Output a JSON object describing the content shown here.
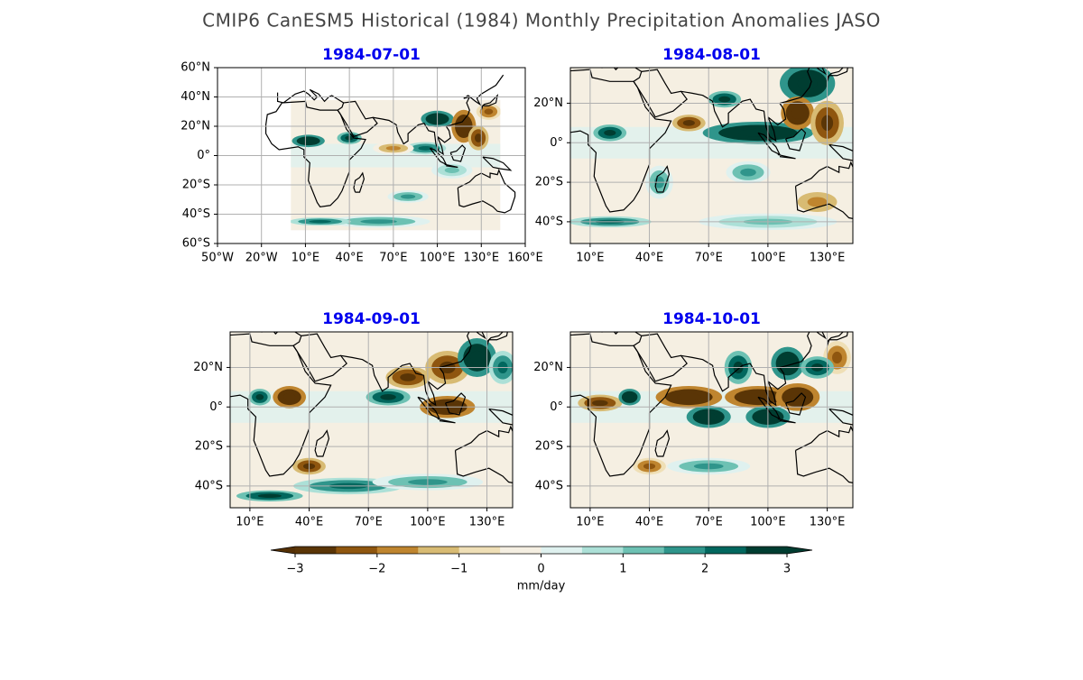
{
  "title": "CMIP6 CanESM5 Historical (1984) Monthly Precipitation Anomalies JASO",
  "panels": [
    {
      "title": "1984-07-01",
      "lonlim": [
        -50,
        160
      ],
      "latlim": [
        -60,
        60
      ],
      "data_lonlim": [
        0,
        143
      ],
      "data_latlim": [
        -51,
        38
      ],
      "xticks": [
        {
          "value": -50,
          "label": "50°W"
        },
        {
          "value": -20,
          "label": "20°W"
        },
        {
          "value": 10,
          "label": "10°E"
        },
        {
          "value": 40,
          "label": "40°E"
        },
        {
          "value": 70,
          "label": "70°E"
        },
        {
          "value": 100,
          "label": "100°E"
        },
        {
          "value": 130,
          "label": "130°E"
        },
        {
          "value": 160,
          "label": "160°E"
        }
      ],
      "yticks": [
        {
          "value": 60,
          "label": "60°N"
        },
        {
          "value": 40,
          "label": "40°N"
        },
        {
          "value": 20,
          "label": "20°N"
        },
        {
          "value": 0,
          "label": "0°"
        },
        {
          "value": -20,
          "label": "20°S"
        },
        {
          "value": -40,
          "label": "40°S"
        },
        {
          "value": -60,
          "label": "60°S"
        }
      ]
    },
    {
      "title": "1984-08-01",
      "lonlim": [
        0,
        143
      ],
      "latlim": [
        -51,
        38
      ],
      "data_lonlim": [
        0,
        143
      ],
      "data_latlim": [
        -51,
        38
      ],
      "xticks": [
        {
          "value": 10,
          "label": "10°E"
        },
        {
          "value": 40,
          "label": "40°E"
        },
        {
          "value": 70,
          "label": "70°E"
        },
        {
          "value": 100,
          "label": "100°E"
        },
        {
          "value": 130,
          "label": "130°E"
        }
      ],
      "yticks": [
        {
          "value": 20,
          "label": "20°N"
        },
        {
          "value": 0,
          "label": "0°"
        },
        {
          "value": -20,
          "label": "20°S"
        },
        {
          "value": -40,
          "label": "40°S"
        }
      ]
    },
    {
      "title": "1984-09-01",
      "lonlim": [
        0,
        143
      ],
      "latlim": [
        -51,
        38
      ],
      "data_lonlim": [
        0,
        143
      ],
      "data_latlim": [
        -51,
        38
      ],
      "xticks": [
        {
          "value": 10,
          "label": "10°E"
        },
        {
          "value": 40,
          "label": "40°E"
        },
        {
          "value": 70,
          "label": "70°E"
        },
        {
          "value": 100,
          "label": "100°E"
        },
        {
          "value": 130,
          "label": "130°E"
        }
      ],
      "yticks": [
        {
          "value": 20,
          "label": "20°N"
        },
        {
          "value": 0,
          "label": "0°"
        },
        {
          "value": -20,
          "label": "20°S"
        },
        {
          "value": -40,
          "label": "40°S"
        }
      ]
    },
    {
      "title": "1984-10-01",
      "lonlim": [
        0,
        143
      ],
      "latlim": [
        -51,
        38
      ],
      "data_lonlim": [
        0,
        143
      ],
      "data_latlim": [
        -51,
        38
      ],
      "xticks": [
        {
          "value": 10,
          "label": "10°E"
        },
        {
          "value": 40,
          "label": "40°E"
        },
        {
          "value": 70,
          "label": "70°E"
        },
        {
          "value": 100,
          "label": "100°E"
        },
        {
          "value": 130,
          "label": "130°E"
        }
      ],
      "yticks": [
        {
          "value": 20,
          "label": "20°N"
        },
        {
          "value": 0,
          "label": "0°"
        },
        {
          "value": -20,
          "label": "20°S"
        },
        {
          "value": -40,
          "label": "40°S"
        }
      ]
    }
  ],
  "colorbar": {
    "label": "mm/day",
    "levels": [
      -3,
      -2.5,
      -2,
      -1.5,
      -1,
      -0.5,
      0,
      0.5,
      1,
      1.5,
      2,
      2.5,
      3
    ],
    "colors": [
      "#5a3506",
      "#8f560f",
      "#bf852f",
      "#d8bb73",
      "#efdfb6",
      "#f5efe2",
      "#dff1ef",
      "#ace0d7",
      "#6dc1b3",
      "#2f958b",
      "#02675e",
      "#003d31"
    ],
    "under_color": "#543005",
    "over_color": "#003c30",
    "ticks": [
      {
        "value": -3,
        "label": "−3"
      },
      {
        "value": -2,
        "label": "−2"
      },
      {
        "value": -1,
        "label": "−1"
      },
      0,
      1,
      2,
      3
    ]
  }
}
